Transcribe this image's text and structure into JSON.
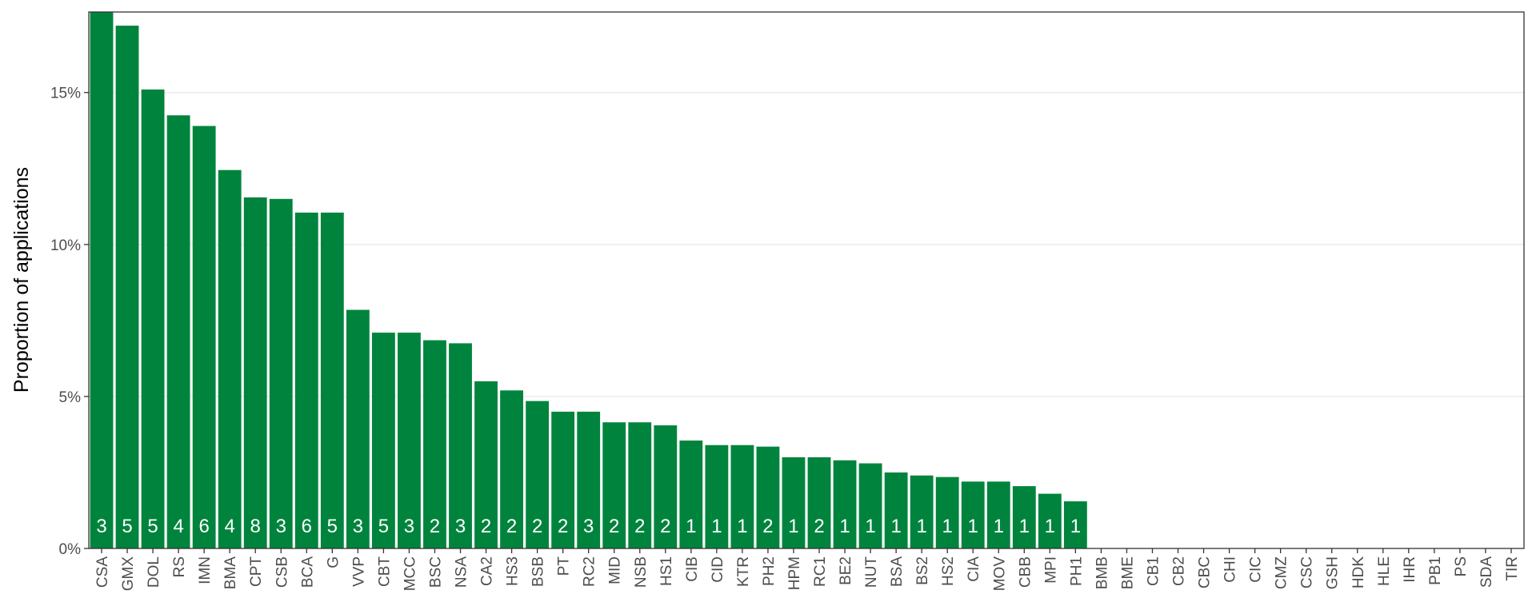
{
  "chart_data": {
    "type": "bar",
    "ylabel": "Proportion of applications",
    "xlabel": "",
    "ylim": [
      0,
      17.65
    ],
    "yticks": [
      0,
      5,
      10,
      15
    ],
    "ytick_labels": [
      "0%",
      "5%",
      "10%",
      "15%"
    ],
    "grid": "horizontal",
    "bar_color": "#00843D",
    "categories": [
      "CSA",
      "GMX",
      "DOL",
      "RS",
      "IMN",
      "BMA",
      "CPT",
      "CSB",
      "BCA",
      "G",
      "VVP",
      "CBT",
      "MCC",
      "BSC",
      "NSA",
      "CA2",
      "HS3",
      "BSB",
      "PT",
      "RC2",
      "MID",
      "NSB",
      "HS1",
      "CIB",
      "CID",
      "KTR",
      "PH2",
      "HPM",
      "RC1",
      "BE2",
      "NUT",
      "BSA",
      "BS2",
      "HS2",
      "CIA",
      "MOV",
      "CBB",
      "MPI",
      "PH1",
      "BMB",
      "BME",
      "CB1",
      "CB2",
      "CBC",
      "CHI",
      "CIC",
      "CMZ",
      "CSC",
      "GSH",
      "HDK",
      "HLE",
      "IHR",
      "PB1",
      "PS",
      "SDA",
      "TIR"
    ],
    "values": [
      17.65,
      17.2,
      15.1,
      14.25,
      13.9,
      12.45,
      11.55,
      11.5,
      11.05,
      11.05,
      7.85,
      7.1,
      7.1,
      6.85,
      6.75,
      5.5,
      5.2,
      4.85,
      4.5,
      4.5,
      4.15,
      4.15,
      4.05,
      3.55,
      3.4,
      3.4,
      3.35,
      3.0,
      3.0,
      2.9,
      2.8,
      2.5,
      2.4,
      2.35,
      2.2,
      2.2,
      2.05,
      1.8,
      1.55,
      0,
      0,
      0,
      0,
      0,
      0,
      0,
      0,
      0,
      0,
      0,
      0,
      0,
      0,
      0,
      0,
      0
    ],
    "counts": [
      "3",
      "5",
      "5",
      "4",
      "6",
      "4",
      "8",
      "3",
      "6",
      "5",
      "3",
      "5",
      "3",
      "2",
      "3",
      "2",
      "2",
      "2",
      "2",
      "3",
      "2",
      "2",
      "2",
      "1",
      "1",
      "1",
      "2",
      "1",
      "2",
      "1",
      "1",
      "1",
      "1",
      "1",
      "1",
      "1",
      "1",
      "1",
      "1",
      "",
      "",
      "",
      "",
      "",
      "",
      "",
      "",
      "",
      "",
      "",
      "",
      "",
      "",
      "",
      "",
      ""
    ]
  }
}
